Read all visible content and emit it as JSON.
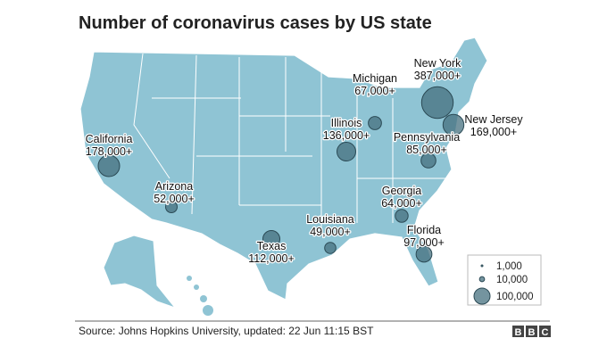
{
  "title": "Number of coronavirus cases by US state",
  "states": [
    {
      "name": "New York",
      "value": 387000,
      "label": "387,000+"
    },
    {
      "name": "New Jersey",
      "value": 169000,
      "label": "169,000+"
    },
    {
      "name": "California",
      "value": 178000,
      "label": "178,000+"
    },
    {
      "name": "Arizona",
      "value": 52000,
      "label": "52,000+"
    },
    {
      "name": "Texas",
      "value": 112000,
      "label": "112,000+"
    },
    {
      "name": "Louisiana",
      "value": 49000,
      "label": "49,000+"
    },
    {
      "name": "Illinois",
      "value": 136000,
      "label": "136,000+"
    },
    {
      "name": "Michigan",
      "value": 67000,
      "label": "67,000+"
    },
    {
      "name": "Pennsylvania",
      "value": 85000,
      "label": "85,000+"
    },
    {
      "name": "Georgia",
      "value": 64000,
      "label": "64,000+"
    },
    {
      "name": "Florida",
      "value": 97000,
      "label": "97,000+"
    }
  ],
  "legend": [
    {
      "value": 1000,
      "label": "1,000"
    },
    {
      "value": 10000,
      "label": "10,000"
    },
    {
      "value": 100000,
      "label": "100,000"
    }
  ],
  "source": "Source: Johns Hopkins University, updated: 22 Jun 11:15 BST",
  "logo": [
    "B",
    "B",
    "C"
  ]
}
